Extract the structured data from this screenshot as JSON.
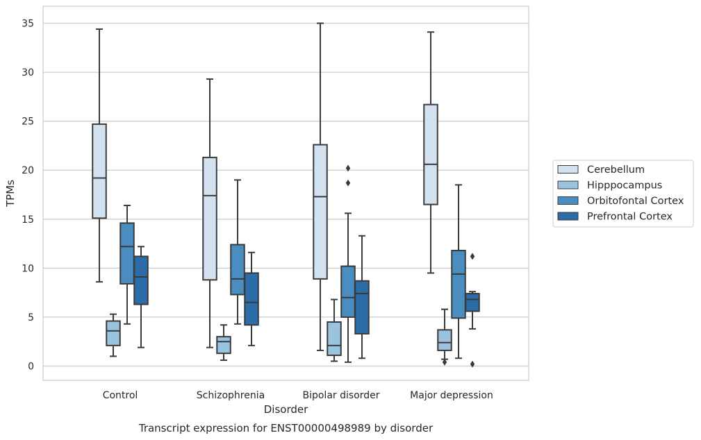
{
  "chart_data": {
    "type": "boxplot",
    "title": "Transcript expression for ENST00000498989 by disorder",
    "xlabel": "Disorder",
    "ylabel": "TPMs",
    "ylim": [
      -1.5,
      36.8
    ],
    "yticks": [
      0,
      5,
      10,
      15,
      20,
      25,
      30,
      35
    ],
    "grid": "horizontal",
    "legend_position": "right",
    "categories": [
      "Control",
      "Schizophrenia",
      "Bipolar disorder",
      "Major depression"
    ],
    "series": [
      {
        "name": "Cerebellum",
        "color": "#d2e2f0",
        "boxes": [
          {
            "whislo": 8.6,
            "q1": 15.1,
            "med": 19.2,
            "q3": 24.7,
            "whishi": 34.4,
            "fliers": []
          },
          {
            "whislo": 1.9,
            "q1": 8.8,
            "med": 17.4,
            "q3": 21.3,
            "whishi": 29.3,
            "fliers": []
          },
          {
            "whislo": 1.6,
            "q1": 8.9,
            "med": 17.3,
            "q3": 22.6,
            "whishi": 35.0,
            "fliers": []
          },
          {
            "whislo": 9.5,
            "q1": 16.5,
            "med": 20.6,
            "q3": 26.7,
            "whishi": 34.1,
            "fliers": []
          }
        ]
      },
      {
        "name": "Hipppocampus",
        "color": "#9ac3de",
        "boxes": [
          {
            "whislo": 1.0,
            "q1": 2.1,
            "med": 3.6,
            "q3": 4.6,
            "whishi": 5.3,
            "fliers": []
          },
          {
            "whislo": 0.6,
            "q1": 1.3,
            "med": 2.5,
            "q3": 3.0,
            "whishi": 4.2,
            "fliers": []
          },
          {
            "whislo": 0.5,
            "q1": 1.1,
            "med": 2.1,
            "q3": 4.5,
            "whishi": 6.8,
            "fliers": []
          },
          {
            "whislo": 0.7,
            "q1": 1.6,
            "med": 2.4,
            "q3": 3.7,
            "whishi": 5.8,
            "fliers": [
              0.4
            ]
          }
        ]
      },
      {
        "name": "Orbitofontal Cortex",
        "color": "#4a8dc0",
        "boxes": [
          {
            "whislo": 4.3,
            "q1": 8.4,
            "med": 12.2,
            "q3": 14.6,
            "whishi": 16.4,
            "fliers": []
          },
          {
            "whislo": 4.3,
            "q1": 7.3,
            "med": 8.9,
            "q3": 12.4,
            "whishi": 19.0,
            "fliers": []
          },
          {
            "whislo": 0.4,
            "q1": 5.0,
            "med": 7.0,
            "q3": 10.2,
            "whishi": 15.6,
            "fliers": [
              20.2,
              18.7
            ]
          },
          {
            "whislo": 0.8,
            "q1": 4.9,
            "med": 9.4,
            "q3": 11.8,
            "whishi": 18.5,
            "fliers": []
          }
        ]
      },
      {
        "name": "Prefrontal Cortex",
        "color": "#2c6ca8",
        "boxes": [
          {
            "whislo": 1.9,
            "q1": 6.3,
            "med": 9.1,
            "q3": 11.2,
            "whishi": 12.2,
            "fliers": []
          },
          {
            "whislo": 2.1,
            "q1": 4.2,
            "med": 6.5,
            "q3": 9.5,
            "whishi": 11.6,
            "fliers": []
          },
          {
            "whislo": 0.8,
            "q1": 3.3,
            "med": 7.4,
            "q3": 8.7,
            "whishi": 13.3,
            "fliers": []
          },
          {
            "whislo": 3.8,
            "q1": 5.6,
            "med": 6.8,
            "q3": 7.4,
            "whishi": 7.6,
            "fliers": [
              11.2,
              0.2
            ]
          }
        ]
      }
    ]
  }
}
